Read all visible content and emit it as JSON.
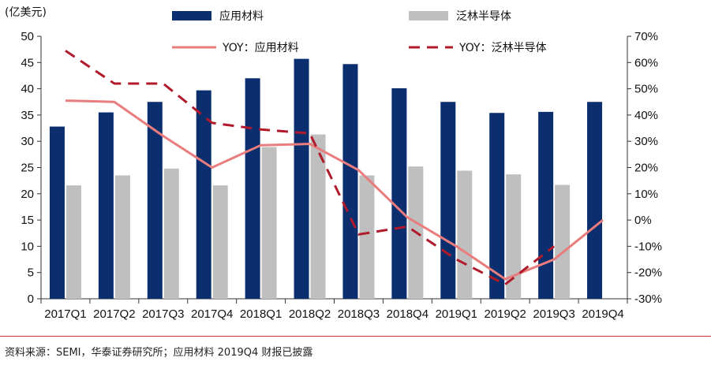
{
  "chart_data": {
    "type": "bar",
    "categories": [
      "2017Q1",
      "2017Q2",
      "2017Q3",
      "2017Q4",
      "2018Q1",
      "2018Q2",
      "2018Q3",
      "2018Q4",
      "2019Q1",
      "2019Q2",
      "2019Q3",
      "2019Q4"
    ],
    "unit_label": "(亿美元)",
    "y_left": {
      "ylim": [
        0,
        50
      ],
      "ticks": [
        "0",
        "5",
        "10",
        "15",
        "20",
        "25",
        "30",
        "35",
        "40",
        "45",
        "50"
      ]
    },
    "y_right": {
      "ylim": [
        -30,
        70
      ],
      "ticks": [
        "-30%",
        "-20%",
        "-10%",
        "0%",
        "10%",
        "20%",
        "30%",
        "40%",
        "50%",
        "60%",
        "70%"
      ]
    },
    "grid": false,
    "legend_placement": "top",
    "series": [
      {
        "name": "应用材料",
        "kind": "bar",
        "axis": "left",
        "color": "#0b2e6e",
        "values": [
          32.8,
          35.5,
          37.5,
          39.7,
          42.0,
          45.7,
          44.7,
          40.1,
          37.5,
          35.4,
          35.6,
          37.5
        ]
      },
      {
        "name": "泛林半导体",
        "kind": "bar",
        "axis": "left",
        "color": "#bfbfbf",
        "values": [
          21.6,
          23.5,
          24.8,
          21.6,
          28.9,
          31.3,
          23.5,
          25.2,
          24.4,
          23.7,
          21.7,
          null
        ]
      },
      {
        "name": "YOY：应用材料",
        "kind": "line",
        "axis": "right",
        "color": "#e97c7c",
        "dash": "solid",
        "values": [
          45.5,
          45.0,
          32.0,
          20.0,
          28.5,
          29.0,
          19.0,
          1.0,
          -10.0,
          -22.5,
          -15.0,
          0.0
        ]
      },
      {
        "name": "YOY：泛林半导体",
        "kind": "line",
        "axis": "right",
        "color": "#b01a2a",
        "dash": "dashed",
        "values": [
          64.5,
          52.0,
          52.0,
          37.0,
          34.5,
          33.0,
          -5.5,
          -2.5,
          -15.0,
          -24.5,
          -10.0,
          null
        ]
      }
    ]
  },
  "source": "资料来源：SEMI，华泰证券研究所；应用材料 2019Q4 财报已披露"
}
